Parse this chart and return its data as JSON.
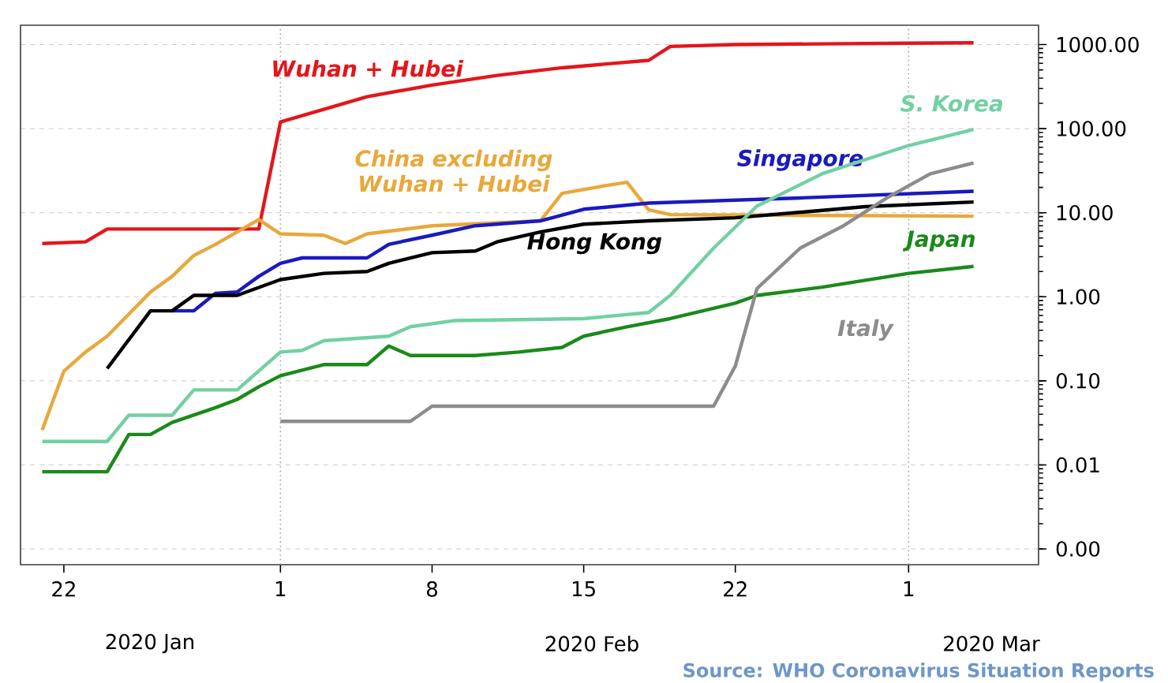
{
  "chart_data": {
    "type": "line",
    "log": true,
    "grid": "y",
    "line_style": "solid",
    "xlim": [
      "2020-01-20",
      "2020-03-07"
    ],
    "xticks": [
      {
        "value": "2020-01-22",
        "label": "22"
      },
      {
        "value": "2020-02-01",
        "label": "1"
      },
      {
        "value": "2020-02-08",
        "label": "8"
      },
      {
        "value": "2020-02-15",
        "label": "15"
      },
      {
        "value": "2020-02-22",
        "label": "22"
      },
      {
        "value": "2020-03-01",
        "label": "1"
      }
    ],
    "ylim": [
      0.00065,
      1700
    ],
    "yticks": [
      {
        "value": 0.001,
        "label": "0.00"
      },
      {
        "value": 0.01,
        "label": "0.01"
      },
      {
        "value": 0.1,
        "label": "0.10"
      },
      {
        "value": 1,
        "label": "1.00"
      },
      {
        "value": 10,
        "label": "10.00"
      },
      {
        "value": 100,
        "label": "100.00"
      },
      {
        "value": 1000,
        "label": "1000.00"
      }
    ],
    "ref_lines": [
      {
        "axis": "x",
        "value": "2020-02-01",
        "color": "#a0a0a0",
        "line_style": "dotted"
      },
      {
        "axis": "x",
        "value": "2020-03-01",
        "color": "#a0a0a0",
        "line_style": "dotted"
      }
    ],
    "series": [
      {
        "name": "Wuhan + Hubei",
        "color": "#e3161b",
        "x": [
          "2020-01-21",
          "2020-01-23",
          "2020-01-24",
          "2020-01-31",
          "2020-02-01",
          "2020-02-03",
          "2020-02-05",
          "2020-02-08",
          "2020-02-11",
          "2020-02-14",
          "2020-02-18",
          "2020-02-19",
          "2020-02-22",
          "2020-02-26",
          "2020-03-01",
          "2020-03-04"
        ],
        "values": [
          4.3,
          4.5,
          6.4,
          6.4,
          120,
          170,
          240,
          330,
          430,
          530,
          650,
          950,
          1000,
          1020,
          1040,
          1050
        ]
      },
      {
        "name": "China excluding Wuhan + Hubei",
        "color": "#e8a83a",
        "x": [
          "2020-01-21",
          "2020-01-22",
          "2020-01-23",
          "2020-01-24",
          "2020-01-26",
          "2020-01-27",
          "2020-01-28",
          "2020-01-29",
          "2020-01-31",
          "2020-02-01",
          "2020-02-03",
          "2020-02-04",
          "2020-02-05",
          "2020-02-08",
          "2020-02-13",
          "2020-02-14",
          "2020-02-16",
          "2020-02-17",
          "2020-02-18",
          "2020-02-19",
          "2020-03-04"
        ],
        "values": [
          0.026,
          0.13,
          0.22,
          0.34,
          1.14,
          1.75,
          3.1,
          4.2,
          8.3,
          5.6,
          5.4,
          4.3,
          5.6,
          7.0,
          8.0,
          17,
          21,
          23,
          10.8,
          9.5,
          9.1
        ]
      },
      {
        "name": "Singapore",
        "color": "#1a1ac0",
        "x": [
          "2020-01-27",
          "2020-01-28",
          "2020-01-29",
          "2020-01-30",
          "2020-01-31",
          "2020-02-01",
          "2020-02-02",
          "2020-02-05",
          "2020-02-06",
          "2020-02-08",
          "2020-02-10",
          "2020-02-13",
          "2020-02-15",
          "2020-02-18",
          "2020-02-25",
          "2020-03-04"
        ],
        "values": [
          0.68,
          0.68,
          1.1,
          1.14,
          1.75,
          2.5,
          2.9,
          2.9,
          4.2,
          5.4,
          7,
          8,
          11,
          13,
          15,
          18
        ]
      },
      {
        "name": "Hong Kong",
        "color": "#000000",
        "x": [
          "2020-01-24",
          "2020-01-26",
          "2020-01-27",
          "2020-01-28",
          "2020-01-30",
          "2020-02-01",
          "2020-02-03",
          "2020-02-05",
          "2020-02-06",
          "2020-02-08",
          "2020-02-10",
          "2020-02-11",
          "2020-02-13",
          "2020-02-15",
          "2020-02-18",
          "2020-02-22",
          "2020-02-28",
          "2020-03-04"
        ],
        "values": [
          0.14,
          0.68,
          0.68,
          1.04,
          1.04,
          1.6,
          1.9,
          2.0,
          2.5,
          3.35,
          3.5,
          4.5,
          5.9,
          7.3,
          8.0,
          8.7,
          11.8,
          13.4
        ]
      },
      {
        "name": "S. Korea",
        "color": "#72d0a2",
        "x": [
          "2020-01-21",
          "2020-01-24",
          "2020-01-25",
          "2020-01-27",
          "2020-01-28",
          "2020-01-30",
          "2020-02-01",
          "2020-02-02",
          "2020-02-03",
          "2020-02-06",
          "2020-02-07",
          "2020-02-09",
          "2020-02-15",
          "2020-02-18",
          "2020-02-19",
          "2020-02-21",
          "2020-02-23",
          "2020-02-26",
          "2020-03-01",
          "2020-03-04"
        ],
        "values": [
          0.019,
          0.019,
          0.039,
          0.039,
          0.078,
          0.078,
          0.22,
          0.23,
          0.3,
          0.34,
          0.44,
          0.52,
          0.55,
          0.65,
          1.04,
          3.8,
          12,
          29,
          63,
          98
        ]
      },
      {
        "name": "Japan",
        "color": "#1a8a1a",
        "x": [
          "2020-01-21",
          "2020-01-24",
          "2020-01-25",
          "2020-01-26",
          "2020-01-27",
          "2020-01-29",
          "2020-01-30",
          "2020-01-31",
          "2020-02-01",
          "2020-02-03",
          "2020-02-05",
          "2020-02-06",
          "2020-02-07",
          "2020-02-10",
          "2020-02-12",
          "2020-02-14",
          "2020-02-15",
          "2020-02-17",
          "2020-02-19",
          "2020-02-22",
          "2020-02-23",
          "2020-02-26",
          "2020-03-01",
          "2020-03-04"
        ],
        "values": [
          0.0083,
          0.0083,
          0.023,
          0.023,
          0.032,
          0.048,
          0.06,
          0.085,
          0.115,
          0.156,
          0.156,
          0.26,
          0.2,
          0.2,
          0.22,
          0.25,
          0.34,
          0.44,
          0.55,
          0.84,
          1.04,
          1.3,
          1.9,
          2.3
        ]
      },
      {
        "name": "Italy",
        "color": "#8c8c8c",
        "x": [
          "2020-02-01",
          "2020-02-07",
          "2020-02-08",
          "2020-02-21",
          "2020-02-22",
          "2020-02-23",
          "2020-02-25",
          "2020-02-27",
          "2020-02-29",
          "2020-03-02",
          "2020-03-04"
        ],
        "values": [
          0.033,
          0.033,
          0.05,
          0.05,
          0.15,
          1.25,
          3.8,
          7,
          15,
          29,
          39
        ]
      }
    ],
    "annotations": [
      "2020 Jan",
      "2020 Feb",
      "2020 Mar",
      "Source: WHO Coronavirus Situation Reports"
    ]
  }
}
